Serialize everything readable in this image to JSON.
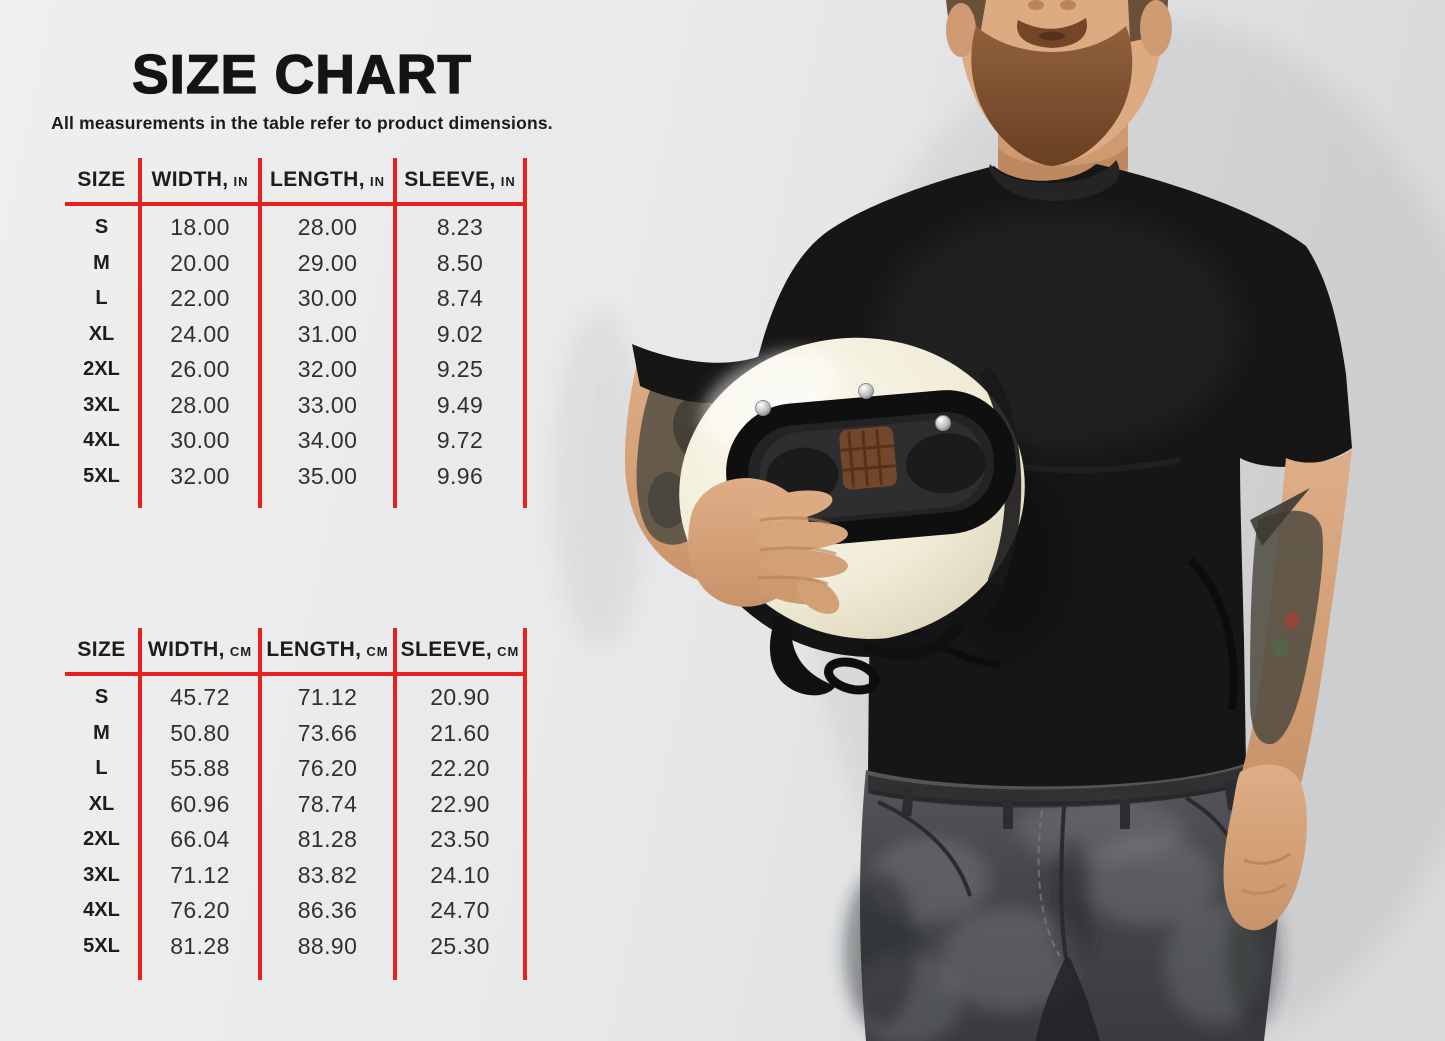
{
  "page": {
    "title": "SIZE CHART",
    "subtitle": "All measurements in the table refer to product dimensions."
  },
  "theme": {
    "line_red": "#e8201e",
    "text_dark": "#242424",
    "background_gray": "#e9eaec",
    "helmet_cream": "#f2eedd",
    "tshirt_black": "#161616",
    "jeans_gray": "#47484b"
  },
  "tables": [
    {
      "id": "inches",
      "headers": [
        {
          "label": "SIZE",
          "unit": ""
        },
        {
          "label": "WIDTH,",
          "unit": "IN"
        },
        {
          "label": "LENGTH,",
          "unit": "IN"
        },
        {
          "label": "SLEEVE,",
          "unit": "IN"
        }
      ],
      "rows": [
        [
          "S",
          "18.00",
          "28.00",
          "8.23"
        ],
        [
          "M",
          "20.00",
          "29.00",
          "8.50"
        ],
        [
          "L",
          "22.00",
          "30.00",
          "8.74"
        ],
        [
          "XL",
          "24.00",
          "31.00",
          "9.02"
        ],
        [
          "2XL",
          "26.00",
          "32.00",
          "9.25"
        ],
        [
          "3XL",
          "28.00",
          "33.00",
          "9.49"
        ],
        [
          "4XL",
          "30.00",
          "34.00",
          "9.72"
        ],
        [
          "5XL",
          "32.00",
          "35.00",
          "9.96"
        ]
      ]
    },
    {
      "id": "centimeters",
      "headers": [
        {
          "label": "SIZE",
          "unit": ""
        },
        {
          "label": "WIDTH,",
          "unit": "CM"
        },
        {
          "label": "LENGTH,",
          "unit": "CM"
        },
        {
          "label": "SLEEVE,",
          "unit": "CM"
        }
      ],
      "rows": [
        [
          "S",
          "45.72",
          "71.12",
          "20.90"
        ],
        [
          "M",
          "50.80",
          "73.66",
          "21.60"
        ],
        [
          "L",
          "55.88",
          "76.20",
          "22.20"
        ],
        [
          "XL",
          "60.96",
          "78.74",
          "22.90"
        ],
        [
          "2XL",
          "66.04",
          "81.28",
          "23.50"
        ],
        [
          "3XL",
          "71.12",
          "83.82",
          "24.10"
        ],
        [
          "4XL",
          "76.20",
          "86.36",
          "24.70"
        ],
        [
          "5XL",
          "81.28",
          "88.90",
          "25.30"
        ]
      ]
    }
  ],
  "photo": {
    "description": "Bearded man in a black crew-neck t-shirt holding a cream retro full-face motorcycle helmet under his left arm; tattooed forearms; dark grey washed jeans; light grey studio background."
  },
  "chart_data": [
    {
      "type": "table",
      "title": "Size chart (inches)",
      "columns": [
        "SIZE",
        "WIDTH, IN",
        "LENGTH, IN",
        "SLEEVE, IN"
      ],
      "rows": [
        [
          "S",
          "18.00",
          "28.00",
          "8.23"
        ],
        [
          "M",
          "20.00",
          "29.00",
          "8.50"
        ],
        [
          "L",
          "22.00",
          "30.00",
          "8.74"
        ],
        [
          "XL",
          "24.00",
          "31.00",
          "9.02"
        ],
        [
          "2XL",
          "26.00",
          "32.00",
          "9.25"
        ],
        [
          "3XL",
          "28.00",
          "33.00",
          "9.49"
        ],
        [
          "4XL",
          "30.00",
          "34.00",
          "9.72"
        ],
        [
          "5XL",
          "32.00",
          "35.00",
          "9.96"
        ]
      ]
    },
    {
      "type": "table",
      "title": "Size chart (centimeters)",
      "columns": [
        "SIZE",
        "WIDTH, CM",
        "LENGTH, CM",
        "SLEEVE, CM"
      ],
      "rows": [
        [
          "S",
          "45.72",
          "71.12",
          "20.90"
        ],
        [
          "M",
          "50.80",
          "73.66",
          "21.60"
        ],
        [
          "L",
          "55.88",
          "76.20",
          "22.20"
        ],
        [
          "XL",
          "60.96",
          "78.74",
          "22.90"
        ],
        [
          "2XL",
          "66.04",
          "81.28",
          "23.50"
        ],
        [
          "3XL",
          "71.12",
          "83.82",
          "24.10"
        ],
        [
          "4XL",
          "76.20",
          "86.36",
          "24.70"
        ],
        [
          "5XL",
          "81.28",
          "88.90",
          "25.30"
        ]
      ]
    }
  ]
}
